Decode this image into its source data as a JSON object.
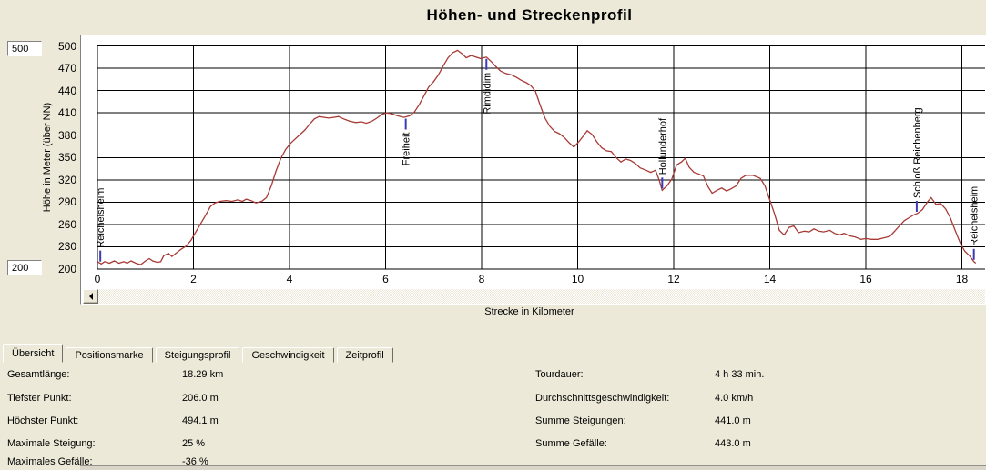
{
  "title": "Höhen- und Streckenprofil",
  "y_axis": {
    "title": "Höhe in Meter (über NN)",
    "max_value": "500",
    "min_value": "200",
    "ticks": [
      500,
      470,
      440,
      410,
      380,
      350,
      320,
      290,
      260,
      230,
      200
    ]
  },
  "x_axis": {
    "title": "Strecke in Kilometer",
    "ticks": [
      0,
      2,
      4,
      6,
      8,
      10,
      12,
      14,
      16,
      18
    ]
  },
  "chart_data": {
    "type": "line",
    "title": "Höhen- und Streckenprofil",
    "xlabel": "Strecke in Kilometer",
    "ylabel": "Höhe in Meter (über NN)",
    "xlim": [
      0,
      18.6
    ],
    "ylim": [
      200,
      500
    ],
    "x_grid_step": 2,
    "y_grid_step": 30,
    "grid": true,
    "line_color": "#a83a35",
    "grid_color": "#000000",
    "marker_color": "#3b3bb6",
    "series": [
      {
        "name": "Höhenprofil",
        "points": [
          [
            0,
            210
          ],
          [
            0.08,
            207
          ],
          [
            0.15,
            210
          ],
          [
            0.25,
            208
          ],
          [
            0.35,
            211
          ],
          [
            0.45,
            208
          ],
          [
            0.55,
            210
          ],
          [
            0.62,
            208
          ],
          [
            0.7,
            211
          ],
          [
            0.8,
            208
          ],
          [
            0.9,
            206
          ],
          [
            1.0,
            211
          ],
          [
            1.08,
            214
          ],
          [
            1.15,
            211
          ],
          [
            1.25,
            209
          ],
          [
            1.32,
            210
          ],
          [
            1.38,
            218
          ],
          [
            1.48,
            221
          ],
          [
            1.55,
            217
          ],
          [
            1.65,
            222
          ],
          [
            1.75,
            227
          ],
          [
            1.85,
            231
          ],
          [
            1.95,
            239
          ],
          [
            2.05,
            250
          ],
          [
            2.15,
            261
          ],
          [
            2.25,
            272
          ],
          [
            2.35,
            284
          ],
          [
            2.45,
            289
          ],
          [
            2.55,
            291
          ],
          [
            2.68,
            292
          ],
          [
            2.8,
            291
          ],
          [
            2.92,
            293
          ],
          [
            3.02,
            291
          ],
          [
            3.1,
            294
          ],
          [
            3.2,
            292
          ],
          [
            3.3,
            289
          ],
          [
            3.42,
            291
          ],
          [
            3.52,
            296
          ],
          [
            3.62,
            312
          ],
          [
            3.72,
            332
          ],
          [
            3.82,
            349
          ],
          [
            3.92,
            361
          ],
          [
            4.02,
            369
          ],
          [
            4.12,
            375
          ],
          [
            4.22,
            381
          ],
          [
            4.32,
            387
          ],
          [
            4.42,
            395
          ],
          [
            4.52,
            402
          ],
          [
            4.62,
            405
          ],
          [
            4.72,
            404
          ],
          [
            4.82,
            403
          ],
          [
            4.92,
            404
          ],
          [
            5.02,
            405
          ],
          [
            5.12,
            402
          ],
          [
            5.25,
            399
          ],
          [
            5.38,
            397
          ],
          [
            5.5,
            398
          ],
          [
            5.6,
            396
          ],
          [
            5.72,
            399
          ],
          [
            5.82,
            403
          ],
          [
            5.92,
            408
          ],
          [
            6.02,
            410
          ],
          [
            6.12,
            409
          ],
          [
            6.25,
            406
          ],
          [
            6.38,
            404
          ],
          [
            6.5,
            406
          ],
          [
            6.6,
            411
          ],
          [
            6.7,
            421
          ],
          [
            6.8,
            433
          ],
          [
            6.9,
            445
          ],
          [
            7.0,
            452
          ],
          [
            7.1,
            461
          ],
          [
            7.2,
            473
          ],
          [
            7.3,
            484
          ],
          [
            7.4,
            491
          ],
          [
            7.5,
            494
          ],
          [
            7.6,
            489
          ],
          [
            7.68,
            484
          ],
          [
            7.78,
            487
          ],
          [
            7.88,
            485
          ],
          [
            7.98,
            483
          ],
          [
            8.1,
            485
          ],
          [
            8.2,
            479
          ],
          [
            8.3,
            472
          ],
          [
            8.4,
            466
          ],
          [
            8.5,
            463
          ],
          [
            8.62,
            461
          ],
          [
            8.72,
            458
          ],
          [
            8.82,
            454
          ],
          [
            8.92,
            451
          ],
          [
            9.02,
            447
          ],
          [
            9.12,
            439
          ],
          [
            9.22,
            420
          ],
          [
            9.32,
            403
          ],
          [
            9.42,
            392
          ],
          [
            9.52,
            385
          ],
          [
            9.62,
            382
          ],
          [
            9.72,
            377
          ],
          [
            9.82,
            370
          ],
          [
            9.92,
            364
          ],
          [
            10.02,
            371
          ],
          [
            10.12,
            379
          ],
          [
            10.2,
            386
          ],
          [
            10.3,
            381
          ],
          [
            10.4,
            371
          ],
          [
            10.5,
            363
          ],
          [
            10.6,
            359
          ],
          [
            10.7,
            358
          ],
          [
            10.8,
            350
          ],
          [
            10.9,
            344
          ],
          [
            11.0,
            348
          ],
          [
            11.1,
            346
          ],
          [
            11.2,
            342
          ],
          [
            11.3,
            336
          ],
          [
            11.42,
            333
          ],
          [
            11.52,
            330
          ],
          [
            11.62,
            333
          ],
          [
            11.7,
            319
          ],
          [
            11.76,
            306
          ],
          [
            11.86,
            312
          ],
          [
            11.96,
            321
          ],
          [
            12.06,
            340
          ],
          [
            12.16,
            344
          ],
          [
            12.24,
            349
          ],
          [
            12.32,
            337
          ],
          [
            12.42,
            330
          ],
          [
            12.52,
            328
          ],
          [
            12.62,
            325
          ],
          [
            12.72,
            310
          ],
          [
            12.8,
            302
          ],
          [
            12.9,
            306
          ],
          [
            13.0,
            309
          ],
          [
            13.1,
            305
          ],
          [
            13.2,
            308
          ],
          [
            13.3,
            312
          ],
          [
            13.4,
            322
          ],
          [
            13.5,
            326
          ],
          [
            13.65,
            326
          ],
          [
            13.8,
            322
          ],
          [
            13.9,
            312
          ],
          [
            14.0,
            293
          ],
          [
            14.1,
            274
          ],
          [
            14.2,
            252
          ],
          [
            14.3,
            246
          ],
          [
            14.4,
            256
          ],
          [
            14.5,
            258
          ],
          [
            14.6,
            249
          ],
          [
            14.72,
            251
          ],
          [
            14.82,
            250
          ],
          [
            14.92,
            254
          ],
          [
            15.02,
            251
          ],
          [
            15.12,
            250
          ],
          [
            15.25,
            252
          ],
          [
            15.35,
            248
          ],
          [
            15.45,
            246
          ],
          [
            15.55,
            248
          ],
          [
            15.65,
            245
          ],
          [
            15.78,
            243
          ],
          [
            15.9,
            240
          ],
          [
            16.0,
            241
          ],
          [
            16.12,
            240
          ],
          [
            16.25,
            240
          ],
          [
            16.38,
            242
          ],
          [
            16.5,
            244
          ],
          [
            16.6,
            251
          ],
          [
            16.7,
            258
          ],
          [
            16.8,
            265
          ],
          [
            16.9,
            269
          ],
          [
            17.0,
            273
          ],
          [
            17.08,
            275
          ],
          [
            17.18,
            280
          ],
          [
            17.28,
            290
          ],
          [
            17.36,
            296
          ],
          [
            17.46,
            287
          ],
          [
            17.56,
            288
          ],
          [
            17.66,
            281
          ],
          [
            17.76,
            269
          ],
          [
            17.86,
            252
          ],
          [
            17.96,
            236
          ],
          [
            18.06,
            224
          ],
          [
            18.16,
            218
          ],
          [
            18.25,
            210
          ],
          [
            18.29,
            208
          ]
        ]
      }
    ],
    "waypoints": [
      {
        "name": "Reichelsheim",
        "km": 0.06,
        "side": "above"
      },
      {
        "name": "Freiheit",
        "km": 6.42,
        "side": "below"
      },
      {
        "name": "Rimdidim",
        "km": 8.1,
        "side": "below"
      },
      {
        "name": "Hollunderhof",
        "km": 11.76,
        "side": "above"
      },
      {
        "name": "Schloß  Reichenberg",
        "km": 17.06,
        "side": "above"
      },
      {
        "name": "Reichelsheim",
        "km": 18.25,
        "side": "above"
      }
    ]
  },
  "tabs": [
    {
      "label": "Übersicht",
      "selected": true
    },
    {
      "label": "Positionsmarke",
      "selected": false
    },
    {
      "label": "Steigungsprofil",
      "selected": false
    },
    {
      "label": "Geschwindigkeit",
      "selected": false
    },
    {
      "label": "Zeitprofil",
      "selected": false
    }
  ],
  "stats": {
    "left": [
      {
        "label": "Gesamtlänge:",
        "value": "18.29 km"
      },
      {
        "label": "Tiefster Punkt:",
        "value": "206.0 m"
      },
      {
        "label": "Höchster Punkt:",
        "value": "494.1 m"
      },
      {
        "label": "Maximale Steigung:",
        "value": "25 %"
      },
      {
        "label": "Maximales Gefälle:",
        "value": "-36 %"
      }
    ],
    "right": [
      {
        "label": "Tourdauer:",
        "value": "4 h 33 min."
      },
      {
        "label": "Durchschnittsgeschwindigkeit:",
        "value": "4.0 km/h"
      },
      {
        "label": "Summe Steigungen:",
        "value": "441.0 m"
      },
      {
        "label": "Summe Gefälle:",
        "value": "443.0 m"
      }
    ]
  }
}
